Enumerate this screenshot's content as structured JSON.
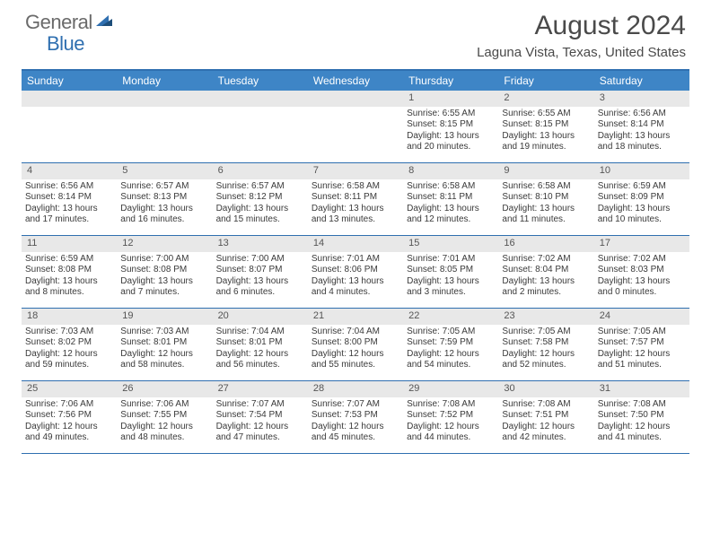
{
  "logo": {
    "general": "General",
    "blue": "Blue"
  },
  "title": "August 2024",
  "location": "Laguna Vista, Texas, United States",
  "colors": {
    "header_bg": "#3e85c6",
    "border": "#2f6fb0",
    "daynum_bg": "#e8e8e8",
    "text": "#3a3a3a"
  },
  "day_names": [
    "Sunday",
    "Monday",
    "Tuesday",
    "Wednesday",
    "Thursday",
    "Friday",
    "Saturday"
  ],
  "weeks": [
    [
      {
        "n": "",
        "sr": "",
        "ss": "",
        "dl": ""
      },
      {
        "n": "",
        "sr": "",
        "ss": "",
        "dl": ""
      },
      {
        "n": "",
        "sr": "",
        "ss": "",
        "dl": ""
      },
      {
        "n": "",
        "sr": "",
        "ss": "",
        "dl": ""
      },
      {
        "n": "1",
        "sr": "Sunrise: 6:55 AM",
        "ss": "Sunset: 8:15 PM",
        "dl": "Daylight: 13 hours and 20 minutes."
      },
      {
        "n": "2",
        "sr": "Sunrise: 6:55 AM",
        "ss": "Sunset: 8:15 PM",
        "dl": "Daylight: 13 hours and 19 minutes."
      },
      {
        "n": "3",
        "sr": "Sunrise: 6:56 AM",
        "ss": "Sunset: 8:14 PM",
        "dl": "Daylight: 13 hours and 18 minutes."
      }
    ],
    [
      {
        "n": "4",
        "sr": "Sunrise: 6:56 AM",
        "ss": "Sunset: 8:14 PM",
        "dl": "Daylight: 13 hours and 17 minutes."
      },
      {
        "n": "5",
        "sr": "Sunrise: 6:57 AM",
        "ss": "Sunset: 8:13 PM",
        "dl": "Daylight: 13 hours and 16 minutes."
      },
      {
        "n": "6",
        "sr": "Sunrise: 6:57 AM",
        "ss": "Sunset: 8:12 PM",
        "dl": "Daylight: 13 hours and 15 minutes."
      },
      {
        "n": "7",
        "sr": "Sunrise: 6:58 AM",
        "ss": "Sunset: 8:11 PM",
        "dl": "Daylight: 13 hours and 13 minutes."
      },
      {
        "n": "8",
        "sr": "Sunrise: 6:58 AM",
        "ss": "Sunset: 8:11 PM",
        "dl": "Daylight: 13 hours and 12 minutes."
      },
      {
        "n": "9",
        "sr": "Sunrise: 6:58 AM",
        "ss": "Sunset: 8:10 PM",
        "dl": "Daylight: 13 hours and 11 minutes."
      },
      {
        "n": "10",
        "sr": "Sunrise: 6:59 AM",
        "ss": "Sunset: 8:09 PM",
        "dl": "Daylight: 13 hours and 10 minutes."
      }
    ],
    [
      {
        "n": "11",
        "sr": "Sunrise: 6:59 AM",
        "ss": "Sunset: 8:08 PM",
        "dl": "Daylight: 13 hours and 8 minutes."
      },
      {
        "n": "12",
        "sr": "Sunrise: 7:00 AM",
        "ss": "Sunset: 8:08 PM",
        "dl": "Daylight: 13 hours and 7 minutes."
      },
      {
        "n": "13",
        "sr": "Sunrise: 7:00 AM",
        "ss": "Sunset: 8:07 PM",
        "dl": "Daylight: 13 hours and 6 minutes."
      },
      {
        "n": "14",
        "sr": "Sunrise: 7:01 AM",
        "ss": "Sunset: 8:06 PM",
        "dl": "Daylight: 13 hours and 4 minutes."
      },
      {
        "n": "15",
        "sr": "Sunrise: 7:01 AM",
        "ss": "Sunset: 8:05 PM",
        "dl": "Daylight: 13 hours and 3 minutes."
      },
      {
        "n": "16",
        "sr": "Sunrise: 7:02 AM",
        "ss": "Sunset: 8:04 PM",
        "dl": "Daylight: 13 hours and 2 minutes."
      },
      {
        "n": "17",
        "sr": "Sunrise: 7:02 AM",
        "ss": "Sunset: 8:03 PM",
        "dl": "Daylight: 13 hours and 0 minutes."
      }
    ],
    [
      {
        "n": "18",
        "sr": "Sunrise: 7:03 AM",
        "ss": "Sunset: 8:02 PM",
        "dl": "Daylight: 12 hours and 59 minutes."
      },
      {
        "n": "19",
        "sr": "Sunrise: 7:03 AM",
        "ss": "Sunset: 8:01 PM",
        "dl": "Daylight: 12 hours and 58 minutes."
      },
      {
        "n": "20",
        "sr": "Sunrise: 7:04 AM",
        "ss": "Sunset: 8:01 PM",
        "dl": "Daylight: 12 hours and 56 minutes."
      },
      {
        "n": "21",
        "sr": "Sunrise: 7:04 AM",
        "ss": "Sunset: 8:00 PM",
        "dl": "Daylight: 12 hours and 55 minutes."
      },
      {
        "n": "22",
        "sr": "Sunrise: 7:05 AM",
        "ss": "Sunset: 7:59 PM",
        "dl": "Daylight: 12 hours and 54 minutes."
      },
      {
        "n": "23",
        "sr": "Sunrise: 7:05 AM",
        "ss": "Sunset: 7:58 PM",
        "dl": "Daylight: 12 hours and 52 minutes."
      },
      {
        "n": "24",
        "sr": "Sunrise: 7:05 AM",
        "ss": "Sunset: 7:57 PM",
        "dl": "Daylight: 12 hours and 51 minutes."
      }
    ],
    [
      {
        "n": "25",
        "sr": "Sunrise: 7:06 AM",
        "ss": "Sunset: 7:56 PM",
        "dl": "Daylight: 12 hours and 49 minutes."
      },
      {
        "n": "26",
        "sr": "Sunrise: 7:06 AM",
        "ss": "Sunset: 7:55 PM",
        "dl": "Daylight: 12 hours and 48 minutes."
      },
      {
        "n": "27",
        "sr": "Sunrise: 7:07 AM",
        "ss": "Sunset: 7:54 PM",
        "dl": "Daylight: 12 hours and 47 minutes."
      },
      {
        "n": "28",
        "sr": "Sunrise: 7:07 AM",
        "ss": "Sunset: 7:53 PM",
        "dl": "Daylight: 12 hours and 45 minutes."
      },
      {
        "n": "29",
        "sr": "Sunrise: 7:08 AM",
        "ss": "Sunset: 7:52 PM",
        "dl": "Daylight: 12 hours and 44 minutes."
      },
      {
        "n": "30",
        "sr": "Sunrise: 7:08 AM",
        "ss": "Sunset: 7:51 PM",
        "dl": "Daylight: 12 hours and 42 minutes."
      },
      {
        "n": "31",
        "sr": "Sunrise: 7:08 AM",
        "ss": "Sunset: 7:50 PM",
        "dl": "Daylight: 12 hours and 41 minutes."
      }
    ]
  ]
}
